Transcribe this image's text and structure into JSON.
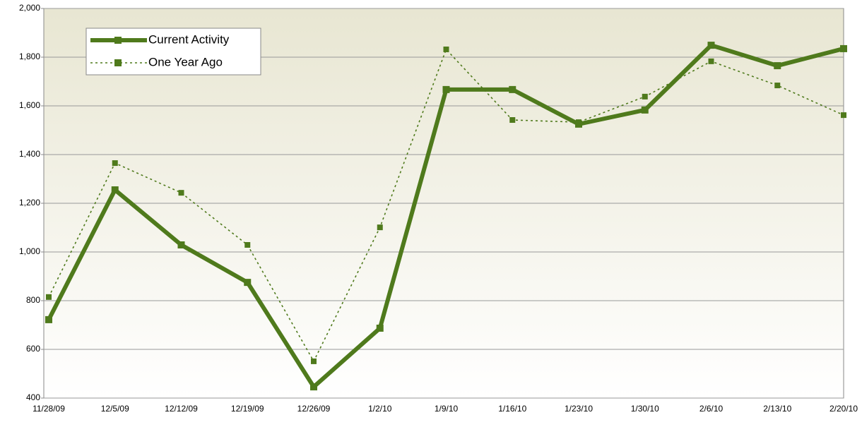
{
  "chart_data": {
    "type": "line",
    "categories": [
      "11/28/09",
      "12/5/09",
      "12/12/09",
      "12/19/09",
      "12/26/09",
      "1/2/10",
      "1/9/10",
      "1/16/10",
      "1/23/10",
      "1/30/10",
      "2/6/10",
      "2/13/10",
      "2/20/10"
    ],
    "series": [
      {
        "name": "Current Activity",
        "color": "#4f7a1c",
        "style": "solid",
        "values": [
          722,
          1255,
          1029,
          875,
          446,
          687,
          1667,
          1667,
          1525,
          1583,
          1849,
          1765,
          1835
        ]
      },
      {
        "name": "One Year Ago",
        "color": "#4f7a1c",
        "style": "dotted",
        "values": [
          815,
          1365,
          1243,
          1029,
          551,
          1101,
          1832,
          1542,
          1533,
          1638,
          1783,
          1684,
          1562
        ]
      }
    ],
    "ylim": [
      400,
      2000
    ],
    "yticks": [
      400,
      600,
      800,
      {
        "value": 1000,
        "label": "1,000"
      },
      {
        "value": 1200,
        "label": "1,200"
      },
      {
        "value": 1400,
        "label": "1,400"
      },
      {
        "value": 1600,
        "label": "1,600"
      },
      {
        "value": 1800,
        "label": "1,800"
      },
      {
        "value": 2000,
        "label": "2,000"
      }
    ],
    "grid": true,
    "legend": "top-left"
  }
}
